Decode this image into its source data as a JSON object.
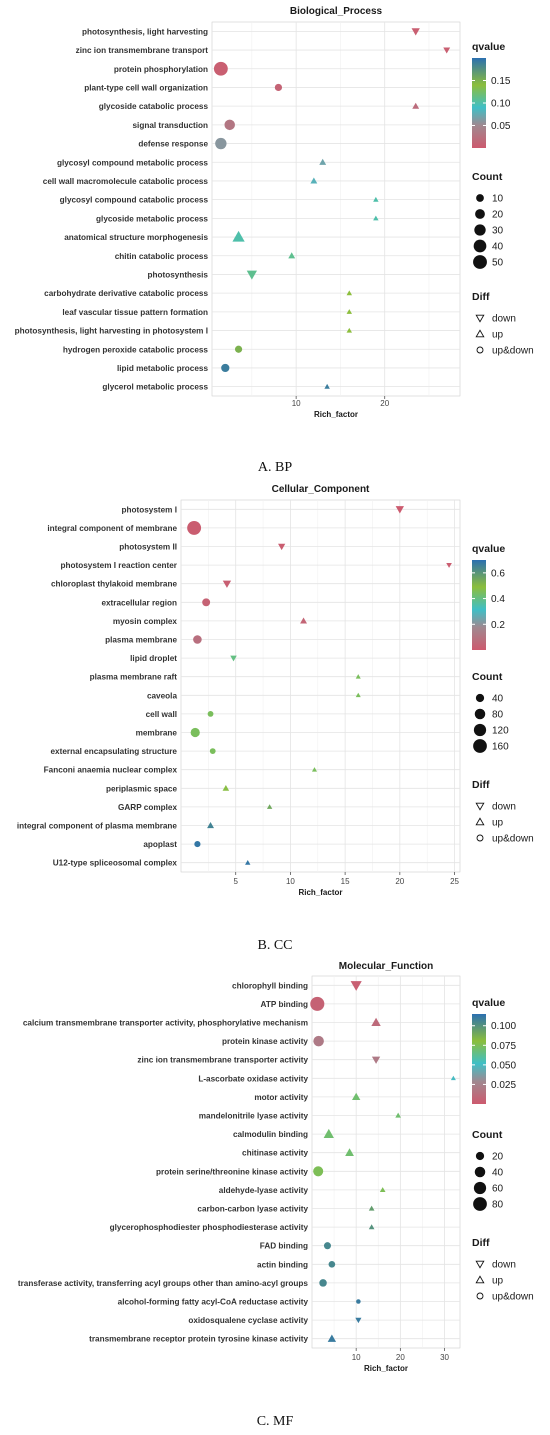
{
  "chart_data": [
    {
      "type": "scatter",
      "panel": "A",
      "title": "Biological_Process",
      "xlabel": "Rich_factor",
      "ylabel": "",
      "xlim": [
        0.5,
        28.5
      ],
      "xticks": [
        10,
        20
      ],
      "caption": "A. BP",
      "legend_qvalue_title": "qvalue",
      "legend_qvalue_ticks": [
        0.05,
        0.1,
        0.15
      ],
      "legend_qvalue_tick_labels": [
        "0.05",
        "0.10",
        "0.15"
      ],
      "qvalue_range": [
        0.0,
        0.2
      ],
      "legend_count_title": "Count",
      "legend_count_values": [
        10,
        20,
        30,
        40,
        50
      ],
      "count_range": [
        1,
        55
      ],
      "legend_diff_title": "Diff",
      "legend_diff_labels": [
        "down",
        "up",
        "up&down"
      ],
      "categories": [
        "photosynthesis, light harvesting",
        "zinc ion transmembrane transport",
        "protein phosphorylation",
        "plant-type cell wall organization",
        "glycoside catabolic process",
        "signal transduction",
        "defense response",
        "glycosyl compound metabolic process",
        "cell wall macromolecule catabolic process",
        "glycosyl compound catabolic process",
        "glycoside metabolic process",
        "anatomical structure morphogenesis",
        "chitin catabolic process",
        "photosynthesis",
        "carbohydrate derivative catabolic process",
        "leaf vascular tissue pattern formation",
        "photosynthesis, light harvesting in photosystem I",
        "hydrogen peroxide catabolic process",
        "lipid metabolic process",
        "glycerol metabolic process"
      ],
      "points": [
        {
          "x": 23.5,
          "count": 6,
          "qvalue": 0.005,
          "diff": "down"
        },
        {
          "x": 27.0,
          "count": 3,
          "qvalue": 0.005,
          "diff": "down"
        },
        {
          "x": 1.5,
          "count": 50,
          "qvalue": 0.005,
          "diff": "up&down"
        },
        {
          "x": 8.0,
          "count": 8,
          "qvalue": 0.01,
          "diff": "up&down"
        },
        {
          "x": 23.5,
          "count": 3,
          "qvalue": 0.02,
          "diff": "up"
        },
        {
          "x": 2.5,
          "count": 24,
          "qvalue": 0.03,
          "diff": "up&down"
        },
        {
          "x": 1.5,
          "count": 30,
          "qvalue": 0.06,
          "diff": "up&down"
        },
        {
          "x": 13.0,
          "count": 3,
          "qvalue": 0.07,
          "diff": "up"
        },
        {
          "x": 12.0,
          "count": 3,
          "qvalue": 0.08,
          "diff": "up"
        },
        {
          "x": 19.0,
          "count": 1,
          "qvalue": 0.1,
          "diff": "up"
        },
        {
          "x": 19.0,
          "count": 1,
          "qvalue": 0.1,
          "diff": "up"
        },
        {
          "x": 3.5,
          "count": 20,
          "qvalue": 0.1,
          "diff": "up"
        },
        {
          "x": 9.5,
          "count": 3,
          "qvalue": 0.11,
          "diff": "up"
        },
        {
          "x": 5.0,
          "count": 12,
          "qvalue": 0.11,
          "diff": "down"
        },
        {
          "x": 16.0,
          "count": 1,
          "qvalue": 0.14,
          "diff": "up"
        },
        {
          "x": 16.0,
          "count": 1,
          "qvalue": 0.14,
          "diff": "up"
        },
        {
          "x": 16.0,
          "count": 1,
          "qvalue": 0.14,
          "diff": "up"
        },
        {
          "x": 3.5,
          "count": 8,
          "qvalue": 0.15,
          "diff": "up&down"
        },
        {
          "x": 2.0,
          "count": 12,
          "qvalue": 0.19,
          "diff": "up&down"
        },
        {
          "x": 13.5,
          "count": 1,
          "qvalue": 0.19,
          "diff": "up"
        }
      ]
    },
    {
      "type": "scatter",
      "panel": "B",
      "title": "Cellular_Component",
      "xlabel": "Rich_factor",
      "ylabel": "",
      "xlim": [
        0,
        25.5
      ],
      "xticks": [
        5,
        10,
        15,
        20,
        25
      ],
      "caption": "B. CC",
      "legend_qvalue_title": "qvalue",
      "legend_qvalue_ticks": [
        0.2,
        0.4,
        0.6
      ],
      "legend_qvalue_tick_labels": [
        "0.2",
        "0.4",
        "0.6"
      ],
      "qvalue_range": [
        0.0,
        0.7
      ],
      "legend_count_title": "Count",
      "legend_count_values": [
        40,
        80,
        120,
        160
      ],
      "count_range": [
        1,
        180
      ],
      "legend_diff_title": "Diff",
      "legend_diff_labels": [
        "down",
        "up",
        "up&down"
      ],
      "categories": [
        "photosystem I",
        "integral component of membrane",
        "photosystem II",
        "photosystem I reaction center",
        "chloroplast thylakoid membrane",
        "extracellular region",
        "myosin complex",
        "plasma membrane",
        "lipid droplet",
        "plasma membrane raft",
        "caveola",
        "cell wall",
        "membrane",
        "external encapsulating structure",
        "Fanconi anaemia nuclear complex",
        "periplasmic space",
        "GARP complex",
        "integral component of plasma membrane",
        "apoplast",
        "U12-type spliceosomal complex"
      ],
      "points": [
        {
          "x": 20.0,
          "count": 20,
          "qvalue": 0.005,
          "diff": "down"
        },
        {
          "x": 1.2,
          "count": 165,
          "qvalue": 0.01,
          "diff": "up&down"
        },
        {
          "x": 9.2,
          "count": 12,
          "qvalue": 0.01,
          "diff": "down"
        },
        {
          "x": 24.5,
          "count": 4,
          "qvalue": 0.01,
          "diff": "down"
        },
        {
          "x": 4.2,
          "count": 20,
          "qvalue": 0.02,
          "diff": "down"
        },
        {
          "x": 2.3,
          "count": 35,
          "qvalue": 0.03,
          "diff": "up&down"
        },
        {
          "x": 11.2,
          "count": 10,
          "qvalue": 0.04,
          "diff": "up"
        },
        {
          "x": 1.5,
          "count": 45,
          "qvalue": 0.08,
          "diff": "up&down"
        },
        {
          "x": 4.8,
          "count": 8,
          "qvalue": 0.4,
          "diff": "down"
        },
        {
          "x": 16.2,
          "count": 2,
          "qvalue": 0.45,
          "diff": "up"
        },
        {
          "x": 16.2,
          "count": 2,
          "qvalue": 0.45,
          "diff": "up"
        },
        {
          "x": 2.7,
          "count": 12,
          "qvalue": 0.45,
          "diff": "up&down"
        },
        {
          "x": 1.3,
          "count": 55,
          "qvalue": 0.45,
          "diff": "up&down"
        },
        {
          "x": 2.9,
          "count": 12,
          "qvalue": 0.45,
          "diff": "up&down"
        },
        {
          "x": 12.2,
          "count": 2,
          "qvalue": 0.45,
          "diff": "up"
        },
        {
          "x": 4.1,
          "count": 8,
          "qvalue": 0.48,
          "diff": "up"
        },
        {
          "x": 8.1,
          "count": 3,
          "qvalue": 0.55,
          "diff": "up"
        },
        {
          "x": 2.7,
          "count": 10,
          "qvalue": 0.65,
          "diff": "up"
        },
        {
          "x": 1.5,
          "count": 15,
          "qvalue": 0.68,
          "diff": "up&down"
        },
        {
          "x": 6.1,
          "count": 3,
          "qvalue": 0.68,
          "diff": "up"
        }
      ]
    },
    {
      "type": "scatter",
      "panel": "C",
      "title": "Molecular_Function",
      "xlabel": "Rich_factor",
      "ylabel": "",
      "xlim": [
        0,
        33.5
      ],
      "xticks": [
        10,
        20,
        30
      ],
      "caption": "C. MF",
      "legend_qvalue_title": "qvalue",
      "legend_qvalue_ticks": [
        0.025,
        0.05,
        0.075,
        0.1
      ],
      "legend_qvalue_tick_labels": [
        "0.025",
        "0.050",
        "0.075",
        "0.100"
      ],
      "qvalue_range": [
        0.0,
        0.115
      ],
      "legend_count_title": "Count",
      "legend_count_values": [
        20,
        40,
        60,
        80
      ],
      "count_range": [
        1,
        90
      ],
      "legend_diff_title": "Diff",
      "legend_diff_labels": [
        "down",
        "up",
        "up&down"
      ],
      "categories": [
        "chlorophyll binding",
        "ATP binding",
        "calcium transmembrane transporter activity, phosphorylative mechanism",
        "protein kinase activity",
        "zinc ion transmembrane transporter activity",
        "L-ascorbate oxidase activity",
        "motor activity",
        "mandelonitrile lyase activity",
        "calmodulin binding",
        "chitinase activity",
        "protein serine/threonine kinase activity",
        "aldehyde-lyase activity",
        "carbon-carbon lyase activity",
        "glycerophosphodiester phosphodiesterase activity",
        "FAD binding",
        "actin binding",
        "transferase activity, transferring acyl groups other than amino-acyl groups",
        "alcohol-forming fatty acyl-CoA reductase activity",
        "oxidosqualene cyclase activity",
        "transmembrane receptor protein tyrosine kinase activity"
      ],
      "points": [
        {
          "x": 10.0,
          "count": 25,
          "qvalue": 0.003,
          "diff": "down"
        },
        {
          "x": 1.2,
          "count": 85,
          "qvalue": 0.005,
          "diff": "up&down"
        },
        {
          "x": 14.5,
          "count": 15,
          "qvalue": 0.01,
          "diff": "up"
        },
        {
          "x": 1.5,
          "count": 40,
          "qvalue": 0.02,
          "diff": "up&down"
        },
        {
          "x": 14.5,
          "count": 10,
          "qvalue": 0.02,
          "diff": "down"
        },
        {
          "x": 32.0,
          "count": 1,
          "qvalue": 0.05,
          "diff": "up"
        },
        {
          "x": 10.0,
          "count": 10,
          "qvalue": 0.07,
          "diff": "up"
        },
        {
          "x": 19.5,
          "count": 2,
          "qvalue": 0.07,
          "diff": "up"
        },
        {
          "x": 3.8,
          "count": 20,
          "qvalue": 0.07,
          "diff": "up"
        },
        {
          "x": 8.5,
          "count": 12,
          "qvalue": 0.07,
          "diff": "up"
        },
        {
          "x": 1.4,
          "count": 35,
          "qvalue": 0.075,
          "diff": "up&down"
        },
        {
          "x": 16.0,
          "count": 2,
          "qvalue": 0.075,
          "diff": "up"
        },
        {
          "x": 13.5,
          "count": 2,
          "qvalue": 0.095,
          "diff": "up"
        },
        {
          "x": 13.5,
          "count": 2,
          "qvalue": 0.1,
          "diff": "up"
        },
        {
          "x": 3.5,
          "count": 12,
          "qvalue": 0.105,
          "diff": "up&down"
        },
        {
          "x": 4.5,
          "count": 10,
          "qvalue": 0.105,
          "diff": "up&down"
        },
        {
          "x": 2.5,
          "count": 15,
          "qvalue": 0.105,
          "diff": "up&down"
        },
        {
          "x": 10.5,
          "count": 2,
          "qvalue": 0.11,
          "diff": "up&down"
        },
        {
          "x": 10.5,
          "count": 3,
          "qvalue": 0.11,
          "diff": "down"
        },
        {
          "x": 4.5,
          "count": 10,
          "qvalue": 0.11,
          "diff": "up"
        }
      ]
    }
  ]
}
